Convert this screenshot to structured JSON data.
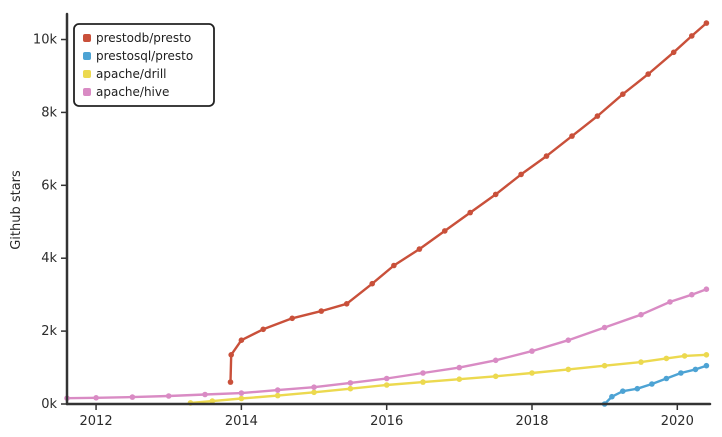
{
  "chart_data": {
    "type": "line",
    "title": "",
    "xlabel": "",
    "ylabel": "Github stars",
    "x_ticks": [
      "2012",
      "2014",
      "2016",
      "2018",
      "2020"
    ],
    "y_ticks": [
      "0k",
      "2k",
      "4k",
      "6k",
      "8k",
      "10k"
    ],
    "xlim": [
      2011.6,
      2020.45
    ],
    "ylim": [
      0,
      10700
    ],
    "grid": false,
    "legend_position": "top-left",
    "series": [
      {
        "name": "prestodb/presto",
        "color": "#c9503a",
        "points": [
          [
            2013.85,
            600
          ],
          [
            2013.86,
            1350
          ],
          [
            2014.0,
            1750
          ],
          [
            2014.3,
            2050
          ],
          [
            2014.7,
            2350
          ],
          [
            2015.1,
            2550
          ],
          [
            2015.45,
            2750
          ],
          [
            2015.8,
            3300
          ],
          [
            2016.1,
            3800
          ],
          [
            2016.45,
            4250
          ],
          [
            2016.8,
            4750
          ],
          [
            2017.15,
            5250
          ],
          [
            2017.5,
            5750
          ],
          [
            2017.85,
            6300
          ],
          [
            2018.2,
            6800
          ],
          [
            2018.55,
            7350
          ],
          [
            2018.9,
            7900
          ],
          [
            2019.25,
            8500
          ],
          [
            2019.6,
            9050
          ],
          [
            2019.95,
            9650
          ],
          [
            2020.2,
            10100
          ],
          [
            2020.4,
            10450
          ]
        ]
      },
      {
        "name": "prestosql/presto",
        "color": "#4da3d4",
        "points": [
          [
            2019.0,
            0
          ],
          [
            2019.1,
            200
          ],
          [
            2019.25,
            350
          ],
          [
            2019.45,
            420
          ],
          [
            2019.65,
            550
          ],
          [
            2019.85,
            700
          ],
          [
            2020.05,
            850
          ],
          [
            2020.25,
            950
          ],
          [
            2020.4,
            1050
          ]
        ]
      },
      {
        "name": "apache/drill",
        "color": "#ecd94f",
        "points": [
          [
            2013.3,
            30
          ],
          [
            2013.6,
            80
          ],
          [
            2014.0,
            150
          ],
          [
            2014.5,
            230
          ],
          [
            2015.0,
            320
          ],
          [
            2015.5,
            420
          ],
          [
            2016.0,
            520
          ],
          [
            2016.5,
            600
          ],
          [
            2017.0,
            680
          ],
          [
            2017.5,
            760
          ],
          [
            2018.0,
            850
          ],
          [
            2018.5,
            950
          ],
          [
            2019.0,
            1050
          ],
          [
            2019.5,
            1150
          ],
          [
            2019.85,
            1250
          ],
          [
            2020.1,
            1320
          ],
          [
            2020.4,
            1350
          ]
        ]
      },
      {
        "name": "apache/hive",
        "color": "#d98bc4",
        "points": [
          [
            2011.6,
            160
          ],
          [
            2012.0,
            170
          ],
          [
            2012.5,
            190
          ],
          [
            2013.0,
            220
          ],
          [
            2013.5,
            260
          ],
          [
            2014.0,
            300
          ],
          [
            2014.5,
            380
          ],
          [
            2015.0,
            460
          ],
          [
            2015.5,
            580
          ],
          [
            2016.0,
            700
          ],
          [
            2016.5,
            850
          ],
          [
            2017.0,
            1000
          ],
          [
            2017.5,
            1200
          ],
          [
            2018.0,
            1450
          ],
          [
            2018.5,
            1750
          ],
          [
            2019.0,
            2100
          ],
          [
            2019.5,
            2450
          ],
          [
            2019.9,
            2800
          ],
          [
            2020.2,
            3000
          ],
          [
            2020.4,
            3150
          ]
        ]
      }
    ]
  }
}
